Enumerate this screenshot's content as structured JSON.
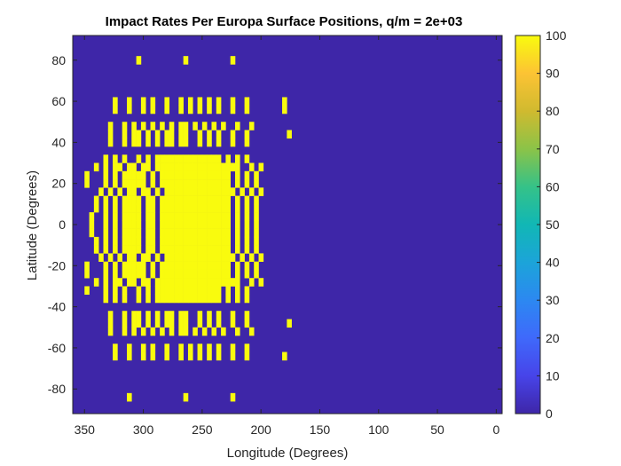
{
  "chart_data": {
    "type": "heatmap",
    "title": "Impact Rates Per Europa Surface Positions, q/m = 2e+03",
    "xlabel": "Longitude (Degrees)",
    "ylabel": "Latitude (Degrees)",
    "xlim": [
      360,
      -5
    ],
    "ylim": [
      -92,
      92
    ],
    "x_direction": "reversed",
    "xticks": [
      350,
      300,
      250,
      200,
      150,
      100,
      50,
      0
    ],
    "yticks": [
      -80,
      -60,
      -40,
      -20,
      0,
      20,
      40,
      60,
      80
    ],
    "cell_size_deg": {
      "lon": 4,
      "lat": 4
    },
    "colorbar": {
      "range": [
        0,
        100
      ],
      "ticks": [
        0,
        10,
        20,
        30,
        40,
        50,
        60,
        70,
        80,
        90,
        100
      ],
      "colormap": "parula",
      "placement": "right"
    },
    "colors": {
      "background": "#3e26a8",
      "high": "#f9fb0e"
    },
    "background_value": 0,
    "high_value": 100,
    "rows": [
      {
        "lat": 80,
        "lons": [
          304,
          264,
          224
        ]
      },
      {
        "lat": 60,
        "lons": [
          324,
          312,
          300,
          292,
          280,
          268,
          260,
          252,
          244,
          236,
          224,
          212,
          180
        ]
      },
      {
        "lat": 56,
        "lons": [
          324,
          312,
          300,
          292,
          280,
          268,
          260,
          252,
          244,
          236,
          224,
          212,
          180
        ]
      },
      {
        "lat": 48,
        "lons": [
          328,
          316,
          308,
          300,
          292,
          284,
          276,
          268,
          264,
          256,
          248,
          240,
          232,
          220,
          208
        ]
      },
      {
        "lat": 44,
        "lons": [
          328,
          316,
          308,
          304,
          296,
          288,
          280,
          276,
          268,
          264,
          252,
          244,
          236,
          224,
          212,
          176
        ]
      },
      {
        "lat": 40,
        "lons": [
          328,
          316,
          308,
          304,
          296,
          288,
          280,
          276,
          268,
          264,
          252,
          244,
          236,
          224,
          212
        ]
      },
      {
        "lat": 32,
        "lons": [
          332,
          324,
          316,
          304,
          296,
          288,
          284,
          280,
          276,
          272,
          268,
          264,
          260,
          256,
          252,
          248,
          244,
          240,
          236,
          228,
          220,
          212
        ]
      },
      {
        "lat": 28,
        "lons": [
          340,
          332,
          324,
          320,
          312,
          308,
          300,
          296,
          288,
          284,
          280,
          276,
          272,
          268,
          264,
          260,
          256,
          252,
          248,
          244,
          240,
          236,
          232,
          228,
          224,
          220,
          208,
          200
        ]
      },
      {
        "lat": 24,
        "lons": [
          348,
          332,
          324,
          316,
          312,
          308,
          304,
          300,
          292,
          284,
          280,
          276,
          272,
          268,
          264,
          260,
          256,
          252,
          248,
          244,
          240,
          236,
          232,
          228,
          220,
          212,
          204
        ]
      },
      {
        "lat": 20,
        "lons": [
          348,
          332,
          324,
          316,
          312,
          308,
          304,
          300,
          292,
          284,
          280,
          276,
          272,
          268,
          264,
          260,
          256,
          252,
          248,
          244,
          240,
          236,
          232,
          228,
          220,
          212,
          204
        ]
      },
      {
        "lat": 16,
        "lons": [
          336,
          328,
          320,
          312,
          308,
          300,
          296,
          288,
          280,
          276,
          272,
          268,
          264,
          260,
          256,
          252,
          248,
          244,
          240,
          236,
          232,
          228,
          224,
          216,
          208,
          200
        ]
      },
      {
        "lat": 12,
        "lons": [
          340,
          332,
          324,
          316,
          312,
          308,
          304,
          296,
          292,
          284,
          280,
          276,
          272,
          268,
          264,
          260,
          256,
          252,
          248,
          244,
          240,
          236,
          232,
          228,
          220,
          212,
          204
        ]
      },
      {
        "lat": 8,
        "lons": [
          340,
          332,
          324,
          316,
          312,
          308,
          304,
          296,
          292,
          284,
          280,
          276,
          272,
          268,
          264,
          260,
          256,
          252,
          248,
          244,
          240,
          236,
          232,
          228,
          220,
          212,
          204
        ]
      },
      {
        "lat": 4,
        "lons": [
          344,
          332,
          324,
          316,
          312,
          308,
          304,
          296,
          292,
          284,
          280,
          276,
          272,
          268,
          264,
          260,
          256,
          252,
          248,
          244,
          240,
          236,
          232,
          228,
          220,
          212,
          204
        ]
      },
      {
        "lat": 0,
        "lons": [
          344,
          332,
          324,
          316,
          312,
          308,
          304,
          296,
          292,
          284,
          280,
          276,
          272,
          268,
          264,
          260,
          256,
          252,
          248,
          244,
          240,
          236,
          232,
          228,
          220,
          212,
          204
        ]
      },
      {
        "lat": -4,
        "lons": [
          344,
          332,
          324,
          316,
          312,
          308,
          304,
          296,
          292,
          284,
          280,
          276,
          272,
          268,
          264,
          260,
          256,
          252,
          248,
          244,
          240,
          236,
          232,
          228,
          220,
          212,
          204
        ]
      },
      {
        "lat": -8,
        "lons": [
          340,
          332,
          324,
          316,
          312,
          308,
          304,
          296,
          292,
          284,
          280,
          276,
          272,
          268,
          264,
          260,
          256,
          252,
          248,
          244,
          240,
          236,
          232,
          228,
          220,
          212,
          204
        ]
      },
      {
        "lat": -12,
        "lons": [
          340,
          332,
          324,
          316,
          312,
          308,
          304,
          296,
          292,
          284,
          280,
          276,
          272,
          268,
          264,
          260,
          256,
          252,
          248,
          244,
          240,
          236,
          232,
          228,
          220,
          212,
          204
        ]
      },
      {
        "lat": -16,
        "lons": [
          336,
          328,
          320,
          312,
          308,
          300,
          296,
          288,
          280,
          276,
          272,
          268,
          264,
          260,
          256,
          252,
          248,
          244,
          240,
          236,
          232,
          228,
          224,
          216,
          208,
          200
        ]
      },
      {
        "lat": -20,
        "lons": [
          348,
          332,
          324,
          316,
          312,
          308,
          304,
          300,
          292,
          284,
          280,
          276,
          272,
          268,
          264,
          260,
          256,
          252,
          248,
          244,
          240,
          236,
          232,
          228,
          220,
          212,
          204
        ]
      },
      {
        "lat": -24,
        "lons": [
          348,
          332,
          324,
          316,
          312,
          308,
          304,
          300,
          292,
          284,
          280,
          276,
          272,
          268,
          264,
          260,
          256,
          252,
          248,
          244,
          240,
          236,
          232,
          228,
          220,
          212,
          204
        ]
      },
      {
        "lat": -28,
        "lons": [
          340,
          332,
          324,
          320,
          312,
          308,
          300,
          296,
          288,
          284,
          280,
          276,
          272,
          268,
          264,
          260,
          256,
          252,
          248,
          244,
          240,
          236,
          232,
          228,
          224,
          220,
          208,
          200
        ]
      },
      {
        "lat": -32,
        "lons": [
          348,
          332,
          324,
          316,
          304,
          296,
          288,
          284,
          280,
          276,
          272,
          268,
          264,
          260,
          256,
          252,
          248,
          244,
          240,
          236,
          228,
          220,
          212
        ]
      },
      {
        "lat": -36,
        "lons": [
          332,
          324,
          316,
          304,
          296,
          288,
          284,
          280,
          276,
          272,
          268,
          264,
          260,
          256,
          252,
          248,
          244,
          240,
          236,
          228,
          220,
          212
        ]
      },
      {
        "lat": -44,
        "lons": [
          328,
          316,
          308,
          304,
          296,
          288,
          280,
          276,
          268,
          264,
          252,
          244,
          236,
          224,
          212
        ]
      },
      {
        "lat": -48,
        "lons": [
          328,
          316,
          308,
          304,
          296,
          288,
          280,
          276,
          268,
          264,
          252,
          244,
          236,
          224,
          212,
          176
        ]
      },
      {
        "lat": -52,
        "lons": [
          328,
          316,
          308,
          300,
          292,
          284,
          276,
          268,
          264,
          256,
          248,
          240,
          232,
          220,
          208
        ]
      },
      {
        "lat": -60,
        "lons": [
          324,
          312,
          300,
          292,
          280,
          268,
          260,
          252,
          244,
          236,
          224,
          212
        ]
      },
      {
        "lat": -64,
        "lons": [
          324,
          312,
          300,
          292,
          280,
          268,
          260,
          252,
          244,
          236,
          224,
          212,
          180
        ]
      },
      {
        "lat": -84,
        "lons": [
          312,
          264,
          224
        ]
      }
    ]
  }
}
